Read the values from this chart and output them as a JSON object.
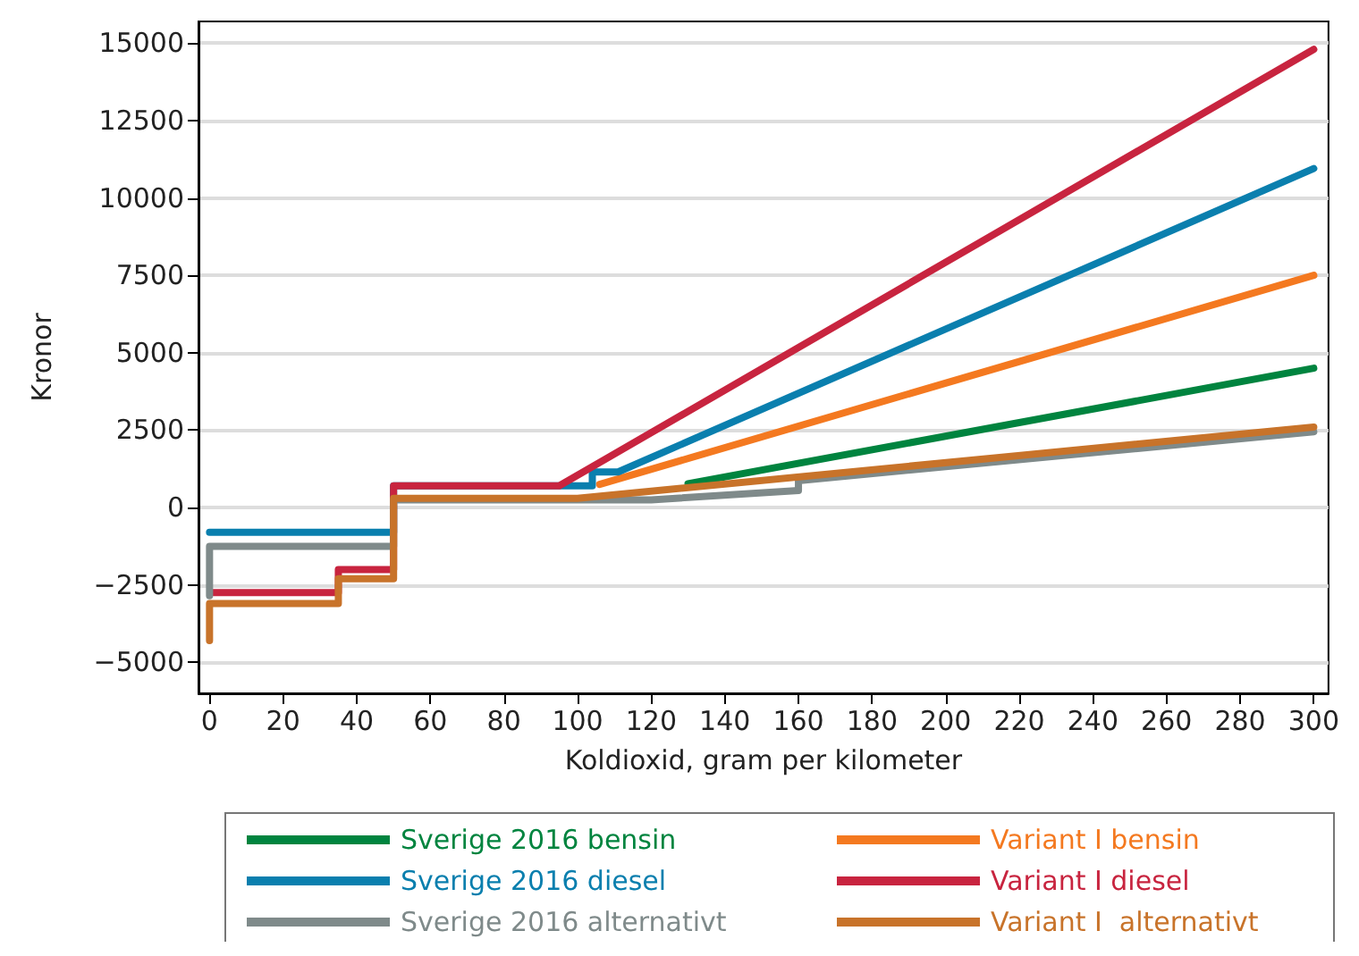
{
  "chart_data": {
    "type": "line",
    "xlabel": "Koldioxid, gram per kilometer",
    "ylabel": "Kronor",
    "xlim": [
      -3,
      304
    ],
    "ylim": [
      -6000,
      15700
    ],
    "xticks": [
      0,
      20,
      40,
      60,
      80,
      100,
      120,
      140,
      160,
      180,
      200,
      220,
      240,
      260,
      280,
      300
    ],
    "yticks": [
      -5000,
      -2500,
      0,
      2500,
      5000,
      7500,
      10000,
      12500,
      15000
    ],
    "grid": "y",
    "legend": "bottom",
    "marker": "none",
    "line_style": "solid",
    "series": [
      {
        "name": "Sverige 2016 bensin",
        "color": "#00843f",
        "x": [
          130,
          300
        ],
        "values": [
          770,
          4500
        ]
      },
      {
        "name": "Variant I bensin",
        "color": "#f47920",
        "x": [
          106,
          300
        ],
        "values": [
          750,
          7500
        ]
      },
      {
        "name": "Sverige 2016 diesel",
        "color": "#0a7fae",
        "x": [
          0,
          50,
          50,
          96,
          104,
          104,
          111,
          300
        ],
        "values": [
          -800,
          -800,
          700,
          700,
          700,
          1150,
          1150,
          10950
        ]
      },
      {
        "name": "Variant I diesel",
        "color": "#c8243f",
        "x": [
          1,
          35,
          35,
          50,
          50,
          95,
          300
        ],
        "values": [
          -2750,
          -2750,
          -2000,
          -2000,
          700,
          700,
          14800
        ]
      },
      {
        "name": "Sverige 2016 alternativt",
        "color": "#7f8a8a",
        "x": [
          0,
          0,
          50,
          50,
          120,
          160,
          160,
          300
        ],
        "values": [
          -2850,
          -1250,
          -1250,
          250,
          250,
          550,
          870,
          2450
        ]
      },
      {
        "name": "Variant I  alternativt",
        "color": "#c8732a",
        "x": [
          0,
          0,
          35,
          35,
          50,
          50,
          100,
          300
        ],
        "values": [
          -4300,
          -3100,
          -3100,
          -2300,
          -2300,
          300,
          300,
          2600
        ]
      }
    ]
  }
}
